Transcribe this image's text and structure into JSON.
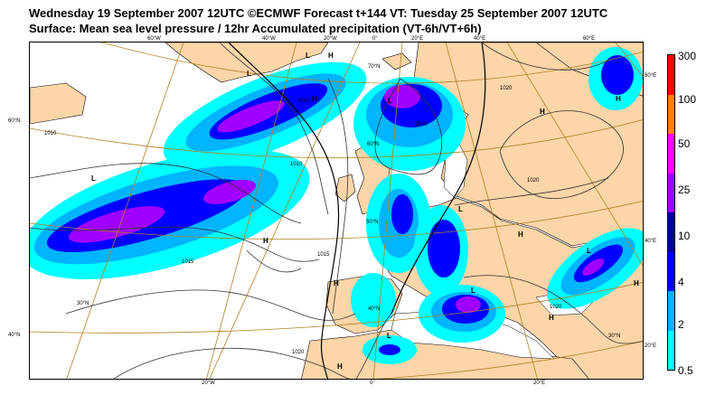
{
  "header": {
    "line1": "Wednesday 19 September 2007 12UTC ©ECMWF Forecast t+144 VT: Tuesday 25 September 2007 12UTC",
    "line2": "Surface: Mean sea level pressure / 12hr Accumulated precipitation (VT-6h/VT+6h)"
  },
  "edge_labels": {
    "top": [
      "60°W",
      "40°W",
      "20°W",
      "0°",
      "20°E",
      "40°E",
      "60°E"
    ],
    "bottom": [
      "20°W",
      "0°",
      "20°E"
    ],
    "left": [
      "60°N",
      "40°N"
    ],
    "right": [
      "60°E",
      "40°E",
      "20°E"
    ]
  },
  "inner_labels": [
    "70°N",
    "60°N",
    "50°N",
    "40°N",
    "30°N",
    "30°N"
  ],
  "pressure_labels": [
    "1010",
    "1010",
    "1010",
    "1015",
    "1015",
    "1020",
    "1020",
    "1020",
    "1020",
    "1000"
  ],
  "systems": [
    "L",
    "L",
    "L",
    "L",
    "L",
    "L",
    "L",
    "L",
    "H",
    "H",
    "H",
    "H",
    "H",
    "H",
    "H",
    "H",
    "H",
    "H"
  ],
  "legend": {
    "levels": [
      "0.5",
      "2",
      "4",
      "10",
      "25",
      "50",
      "100",
      "300"
    ],
    "colors": [
      "#00ffff",
      "#00b4ff",
      "#0000ff",
      "#0000a0",
      "#a000ff",
      "#ff00ff",
      "#ff8000",
      "#ff0000"
    ]
  },
  "palette": {
    "land": "#fcd5a8",
    "sea": "#ffffff",
    "grid": "#b08020",
    "isobar": "#333333"
  }
}
